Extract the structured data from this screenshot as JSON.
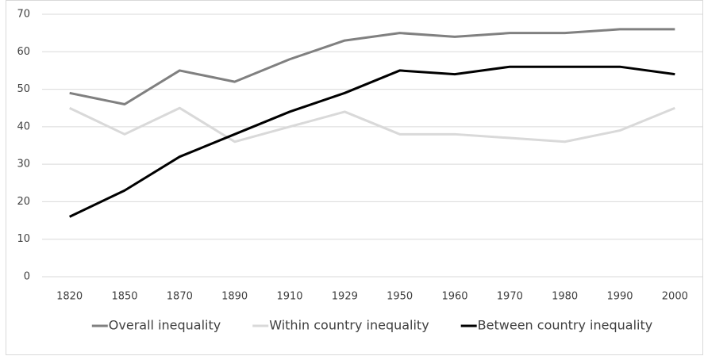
{
  "chart_data": {
    "type": "line",
    "categories": [
      "1820",
      "1850",
      "1870",
      "1890",
      "1910",
      "1929",
      "1950",
      "1960",
      "1970",
      "1980",
      "1990",
      "2000"
    ],
    "series": [
      {
        "name": "Overall inequality",
        "color": "#808080",
        "values": [
          49,
          46,
          55,
          52,
          58,
          63,
          65,
          64,
          65,
          65,
          66,
          66
        ]
      },
      {
        "name": "Within country inequality",
        "color": "#d9d9d9",
        "values": [
          45,
          38,
          45,
          36,
          40,
          44,
          38,
          38,
          37,
          36,
          39,
          45
        ]
      },
      {
        "name": "Between country inequality",
        "color": "#000000",
        "values": [
          16,
          23,
          32,
          38,
          44,
          49,
          55,
          54,
          56,
          56,
          56,
          54
        ]
      }
    ],
    "ylim": [
      0,
      70
    ],
    "yticks": [
      0,
      10,
      20,
      30,
      40,
      50,
      60,
      70
    ],
    "grid": true,
    "legend": "bottom"
  }
}
